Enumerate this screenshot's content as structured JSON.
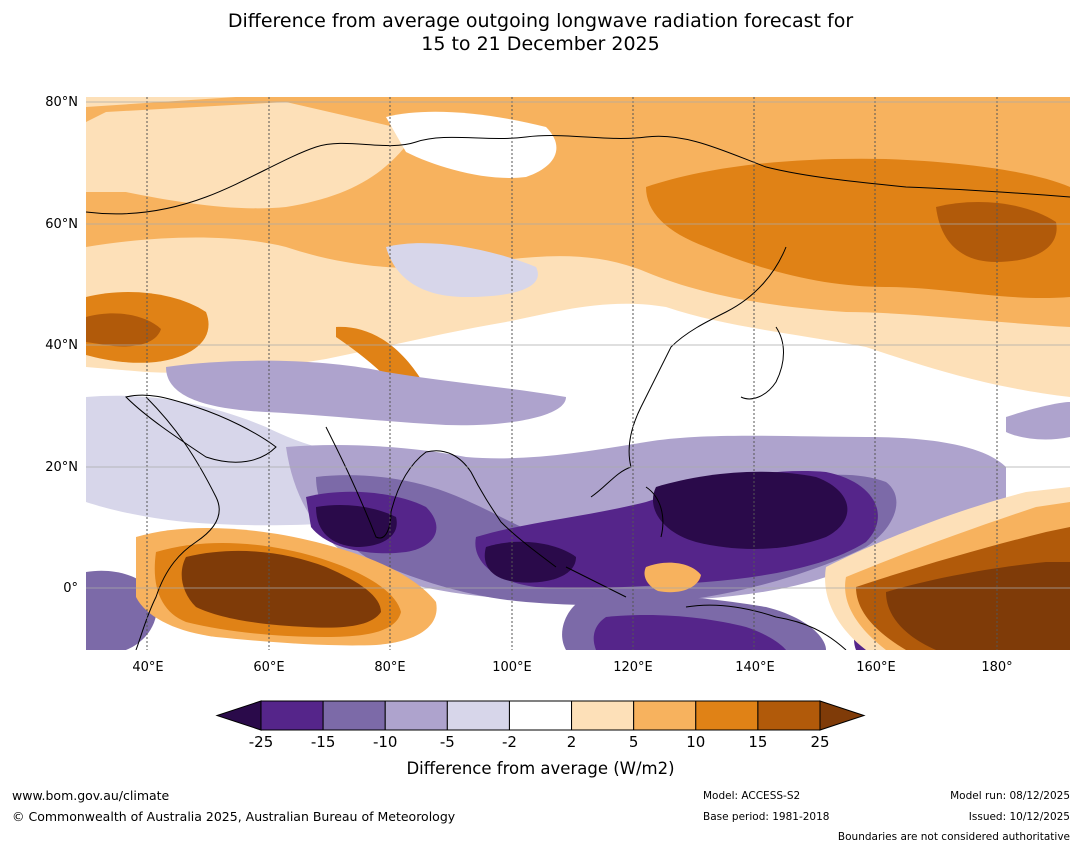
{
  "title": {
    "line1": "Difference from average outgoing longwave radiation forecast for",
    "line2": "15 to 21 December 2025"
  },
  "map": {
    "lat_labels": [
      "80°N",
      "60°N",
      "40°N",
      "20°N",
      "0°"
    ],
    "lon_labels": [
      "40°E",
      "60°E",
      "80°E",
      "100°E",
      "120°E",
      "140°E",
      "160°E",
      "180°"
    ]
  },
  "colorbar": {
    "title": "Difference from average (W/m2)",
    "ticks": [
      "-25",
      "-15",
      "-10",
      "-5",
      "-2",
      "2",
      "5",
      "10",
      "15",
      "25"
    ],
    "colors": [
      "#2a0a4a",
      "#55258a",
      "#7c6aa8",
      "#aea3cd",
      "#d7d6ea",
      "#ffffff",
      "#fde0b8",
      "#f7b25e",
      "#e08216",
      "#b15a0a",
      "#7f3b08"
    ]
  },
  "footer": {
    "website": "www.bom.gov.au/climate",
    "copyright": "© Commonwealth of Australia 2025, Australian Bureau of Meteorology",
    "model": "Model: ACCESS-S2",
    "base_period": "Base period: 1981-2018",
    "model_run": "Model run: 08/12/2025",
    "issued": "Issued: 10/12/2025",
    "disclaimer": "Boundaries are not considered authoritative"
  }
}
